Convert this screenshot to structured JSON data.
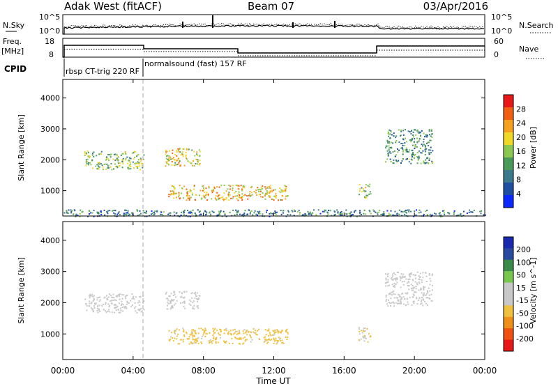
{
  "header": {
    "station": "Adak West (fitACF)",
    "beam": "Beam 07",
    "date": "03/Apr/2016"
  },
  "noise_panel": {
    "left_label": "N.Sky",
    "left_ticks": [
      "10^5",
      "10^0"
    ],
    "right_ticks": [
      "10^5",
      "10^0"
    ],
    "right_label": "N.Search"
  },
  "freq_panel": {
    "left_label_1": "Freq.",
    "left_label_2": "[MHz]",
    "left_ticks": [
      "18",
      "8"
    ],
    "right_ticks": [
      "60",
      "0"
    ],
    "right_label": "Nave"
  },
  "cpid": {
    "label": "CPID",
    "program_1": "rbsp CT-trig 220 RF",
    "program_2": "normalsound (fast) 157 RF"
  },
  "axes": {
    "ylabel": "Slant Range [km]",
    "yticks": [
      "4000",
      "3000",
      "2000",
      "1000"
    ],
    "xticks": [
      "00:00",
      "04:00",
      "08:00",
      "12:00",
      "16:00",
      "20:00",
      "00:00"
    ],
    "xlabel": "Time UT"
  },
  "colors": {
    "power": [
      "#0a28ff",
      "#1f4fa0",
      "#3a7a8c",
      "#4a9a5a",
      "#8ac850",
      "#f0d828",
      "#f6a020",
      "#f06010",
      "#e81818"
    ],
    "velocity": [
      "#e81818",
      "#f05010",
      "#f09018",
      "#f0c040",
      "#c8c8c8",
      "#c8c8c8",
      "#78c850",
      "#3a8a4a",
      "#2a4aa0",
      "#1a2ab0"
    ]
  },
  "chart_data": [
    {
      "type": "heatmap",
      "title": "",
      "xlabel": "Time UT",
      "ylabel": "Slant Range [km]",
      "xlim": [
        0,
        24
      ],
      "ylim": [
        180,
        4600
      ],
      "colorbar": {
        "label": "Power [dB]",
        "ticks": [
          "28",
          "24",
          "20",
          "16",
          "12",
          "8",
          "4"
        ],
        "range": [
          0,
          30
        ]
      },
      "echo_regions": [
        {
          "t_start": 1.2,
          "t_end": 4.6,
          "range_km": [
            1700,
            2300
          ],
          "value": 14
        },
        {
          "t_start": 5.8,
          "t_end": 7.8,
          "range_km": [
            1800,
            2400
          ],
          "value": 18
        },
        {
          "t_start": 6.0,
          "t_end": 12.8,
          "range_km": [
            700,
            1200
          ],
          "value": 20
        },
        {
          "t_start": 16.8,
          "t_end": 17.5,
          "range_km": [
            750,
            1250
          ],
          "value": 16
        },
        {
          "t_start": 18.3,
          "t_end": 21.0,
          "range_km": [
            1900,
            3000
          ],
          "value": 10
        },
        {
          "t_start": 0.0,
          "t_end": 24.0,
          "range_km": [
            180,
            400
          ],
          "value": 8
        }
      ]
    },
    {
      "type": "heatmap",
      "title": "",
      "xlabel": "Time UT",
      "ylabel": "Slant Range [km]",
      "xlim": [
        0,
        24
      ],
      "ylim": [
        180,
        4600
      ],
      "colorbar": {
        "label": "Velocity [m s^-1]",
        "ticks": [
          "200",
          "100",
          "50",
          "15",
          "-15",
          "-50",
          "-100",
          "-200"
        ],
        "range": [
          -250,
          250
        ]
      },
      "echo_regions": [
        {
          "t_start": 1.2,
          "t_end": 4.6,
          "range_km": [
            1700,
            2300
          ],
          "value": 0
        },
        {
          "t_start": 5.8,
          "t_end": 7.8,
          "range_km": [
            1800,
            2400
          ],
          "value": 0
        },
        {
          "t_start": 6.0,
          "t_end": 12.8,
          "range_km": [
            700,
            1200
          ],
          "value": -80
        },
        {
          "t_start": 16.8,
          "t_end": 17.5,
          "range_km": [
            750,
            1250
          ],
          "value": -60
        },
        {
          "t_start": 18.3,
          "t_end": 21.0,
          "range_km": [
            1900,
            3000
          ],
          "value": 0
        }
      ]
    }
  ]
}
